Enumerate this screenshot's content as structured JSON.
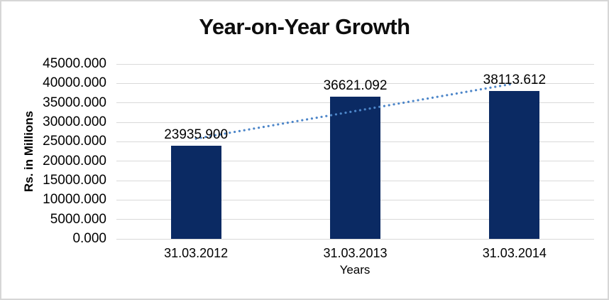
{
  "chart_data": {
    "type": "bar",
    "title": "Year-on-Year Growth",
    "xlabel": "Years",
    "ylabel": "Rs. in Millions",
    "categories": [
      "31.03.2012",
      "31.03.2013",
      "31.03.2014"
    ],
    "values": [
      23935.9,
      36621.092,
      38113.612
    ],
    "value_labels": [
      "23935.900",
      "36621.092",
      "38113.612"
    ],
    "ylim": [
      0,
      45000
    ],
    "ytick_step": 5000,
    "ytick_decimals": 3,
    "grid": true,
    "legend": "none",
    "trendline": {
      "type": "linear",
      "style": "dotted"
    },
    "colors": {
      "bar": "#0b2a63",
      "trendline": "#4d86c9",
      "gridline": "#d9d9d9",
      "text": "#000000",
      "frame_border": "#d6d6d6",
      "background": "#ffffff"
    }
  }
}
